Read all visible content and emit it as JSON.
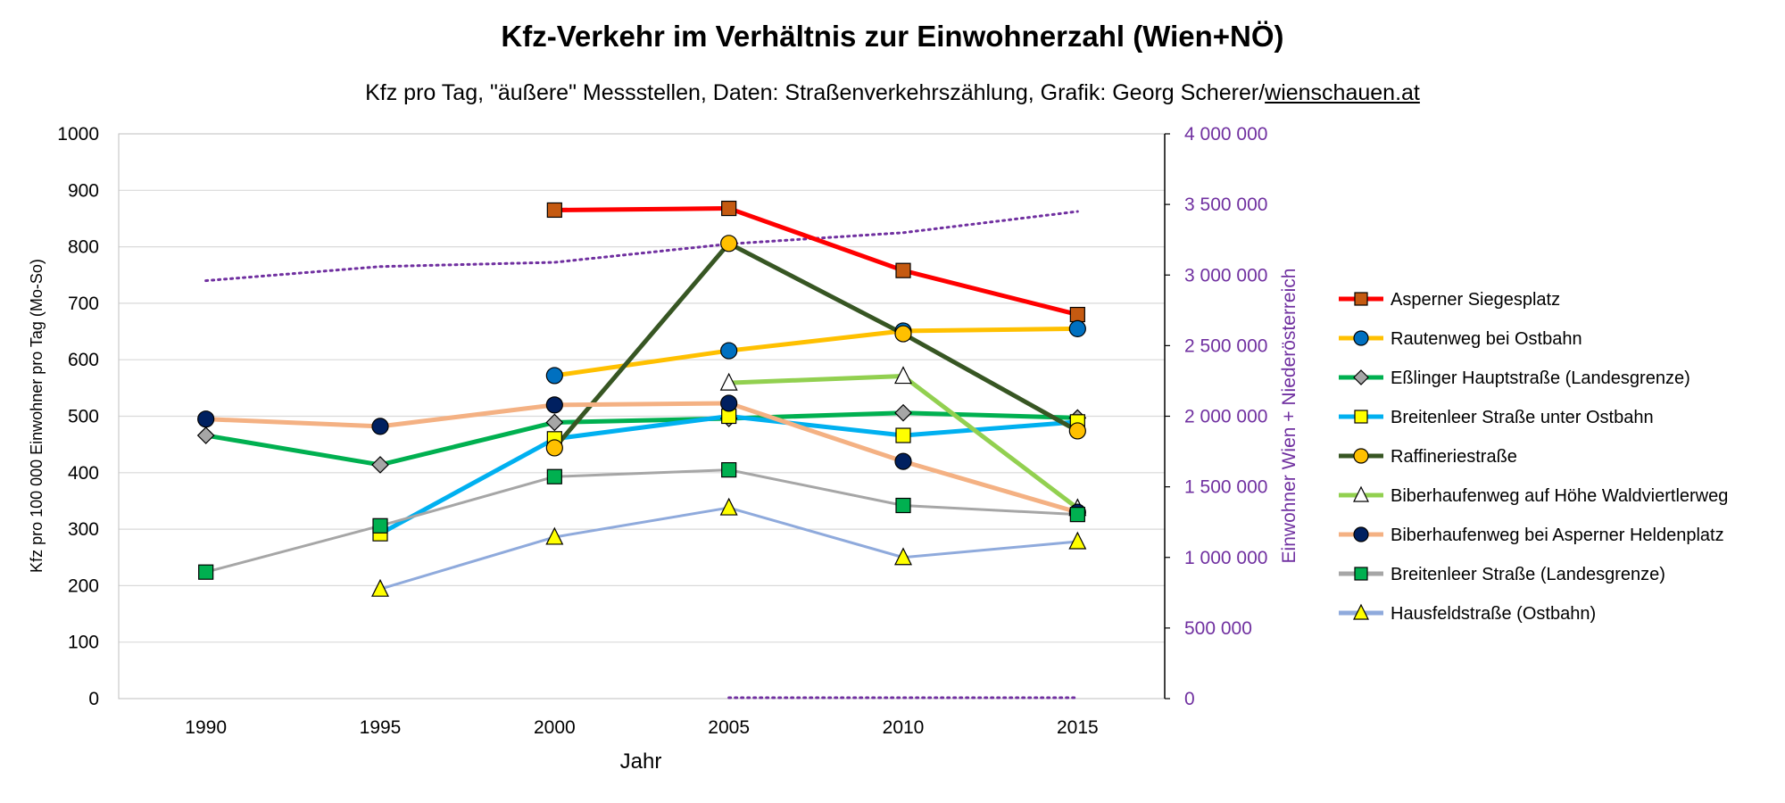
{
  "title": "Kfz-Verkehr im Verhältnis zur Einwohnerzahl (Wien+NÖ)",
  "subtitle": {
    "text": "Kfz pro Tag, \"äußere\" Messstellen, Daten: Straßenverkehrszählung, Grafik: Georg Scherer/",
    "link": "wienschauen.at"
  },
  "chart_data": {
    "type": "line",
    "xlabel": "Jahr",
    "ylabel": "Kfz pro 100 000 Einwohner pro Tag (Mo-So)",
    "y2label": "Einwohner Wien + Niederösterreich",
    "x": [
      1990,
      1995,
      2000,
      2005,
      2010,
      2015
    ],
    "xlim": [
      1987.5,
      2017.5
    ],
    "ylim": [
      0,
      1000
    ],
    "y2lim": [
      0,
      4000000
    ],
    "yticks": [
      "0",
      "100",
      "200",
      "300",
      "400",
      "500",
      "600",
      "700",
      "800",
      "900",
      "1000"
    ],
    "y2ticks": [
      "0",
      "500 000",
      "1 000 000",
      "1 500 000",
      "2 000 000",
      "2 500 000",
      "3 000 000",
      "3 500 000",
      "4 000 000"
    ],
    "grid": "horizontal",
    "legend_position": "right",
    "series": [
      {
        "name": "Asperner Siegesplatz",
        "color": "#ff0000",
        "marker": "square",
        "marker_fill": "#c55a11",
        "values": [
          null,
          null,
          865,
          868,
          758,
          680
        ]
      },
      {
        "name": "Rautenweg bei Ostbahn",
        "color": "#ffc000",
        "marker": "circle",
        "marker_fill": "#0070c0",
        "values": [
          null,
          null,
          572,
          616,
          651,
          655
        ]
      },
      {
        "name": "Eßlinger Hauptstraße (Landesgrenze)",
        "color": "#00b050",
        "marker": "diamond",
        "marker_fill": "#a6a6a6",
        "values": [
          466,
          414,
          489,
          496,
          506,
          497
        ]
      },
      {
        "name": "Breitenleer Straße unter Ostbahn",
        "color": "#00b0f0",
        "marker": "square",
        "marker_fill": "#ffff00",
        "values": [
          null,
          292,
          460,
          500,
          466,
          490
        ]
      },
      {
        "name": "Raffineriestraße",
        "color": "#375623",
        "marker": "circle",
        "marker_fill": "#ffc000",
        "values": [
          null,
          null,
          444,
          806,
          646,
          474
        ]
      },
      {
        "name": "Biberhaufenweg auf Höhe Waldviertlerweg",
        "color": "#92d050",
        "marker": "triangle",
        "marker_fill": "#ffffff",
        "values": [
          null,
          null,
          null,
          559,
          571,
          337
        ]
      },
      {
        "name": "Biberhaufenweg bei Asperner Heldenplatz",
        "color": "#f4b183",
        "marker": "circle",
        "marker_fill": "#002060",
        "values": [
          495,
          482,
          520,
          523,
          420,
          330
        ]
      },
      {
        "name": "Breitenleer Straße (Landesgrenze)",
        "color": "#a6a6a6",
        "marker": "square",
        "marker_fill": "#00b050",
        "values": [
          224,
          306,
          393,
          405,
          342,
          326
        ]
      },
      {
        "name": "Hausfeldstraße (Ostbahn)",
        "color": "#8faadc",
        "marker": "triangle",
        "marker_fill": "#ffff00",
        "values": [
          null,
          194,
          286,
          338,
          250,
          278
        ]
      }
    ],
    "population_series": {
      "axis": "right",
      "color": "#7030a0",
      "style": "dotted",
      "values": [
        2960000,
        3060000,
        3090000,
        3220000,
        3300000,
        3450000
      ]
    },
    "zero_series": {
      "axis": "right",
      "color": "#7030a0",
      "style": "dotted",
      "x": [
        2005,
        2010,
        2015
      ],
      "values": [
        0,
        0,
        0
      ]
    }
  }
}
